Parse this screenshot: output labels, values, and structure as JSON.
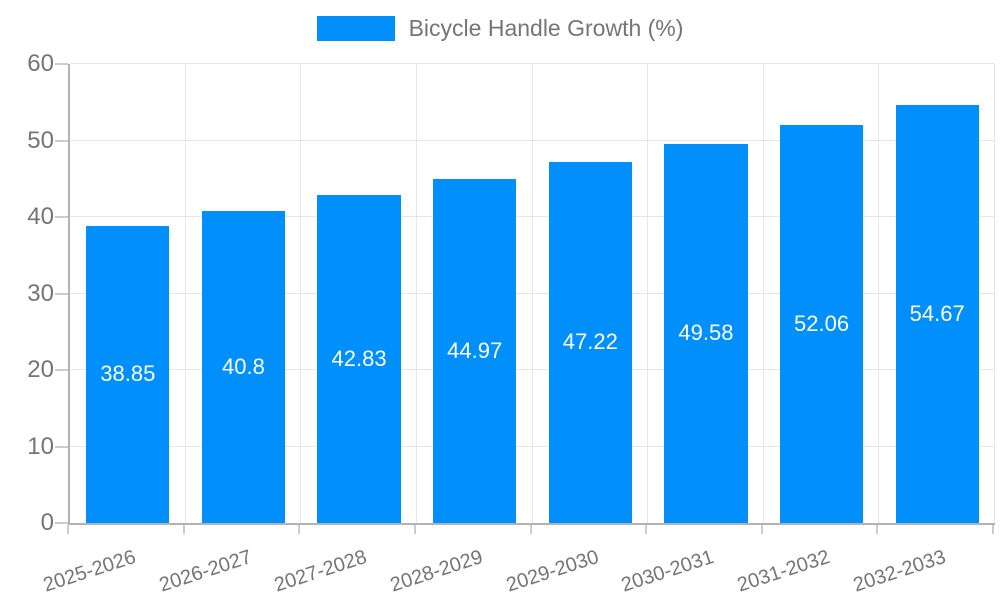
{
  "legend": {
    "label": "Bicycle Handle Growth (%)"
  },
  "colors": {
    "bar": "#008FFB",
    "axis": "#b3b3b3",
    "tick": "#cccccc",
    "gridline": "#e6e6e6",
    "text": "#757575",
    "value_label": "#ffffff",
    "background": "#ffffff"
  },
  "chart_data": {
    "type": "bar",
    "title": "Bicycle Handle Growth (%)",
    "categories": [
      "2025-2026",
      "2026-2027",
      "2027-2028",
      "2028-2029",
      "2029-2030",
      "2030-2031",
      "2031-2032",
      "2032-2033"
    ],
    "series": [
      {
        "name": "Bicycle Handle Growth (%)",
        "values": [
          38.85,
          40.8,
          42.83,
          44.97,
          47.22,
          49.58,
          52.06,
          54.67
        ]
      }
    ],
    "value_labels": [
      "38.85",
      "40.8",
      "42.83",
      "44.97",
      "47.22",
      "49.58",
      "52.06",
      "54.67"
    ],
    "xlabel": "",
    "ylabel": "",
    "ylim": [
      0,
      60
    ],
    "yticks": [
      0,
      10,
      20,
      30,
      40,
      50,
      60
    ],
    "grid": true,
    "legend_position": "top",
    "value_label_position": "center-of-bar"
  }
}
